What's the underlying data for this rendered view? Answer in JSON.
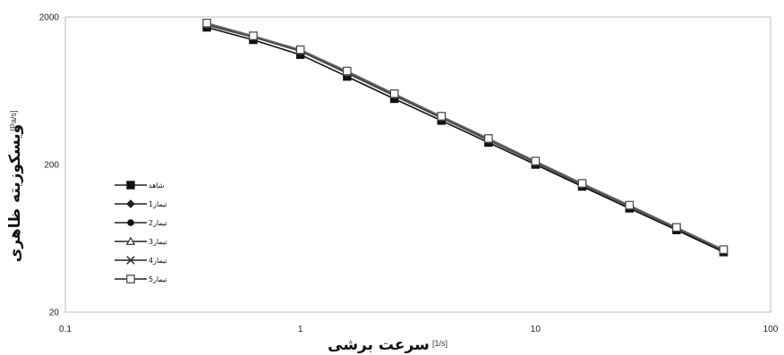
{
  "chart_data": {
    "type": "line",
    "x_scale": "log",
    "y_scale": "log",
    "xlim": [
      0.1,
      100
    ],
    "ylim": [
      20,
      2000
    ],
    "x_ticks": [
      "0.1",
      "1",
      "10",
      "100"
    ],
    "y_ticks": [
      "20",
      "200",
      "2000"
    ],
    "xlabel": "سرعت برشی",
    "xlabel_unit": "[1/s]",
    "ylabel": "ویسکوزیته ظاهری",
    "ylabel_unit": "[Pa/s]",
    "grid": false,
    "legend_position": "left-center",
    "x": [
      0.4,
      0.63,
      1.0,
      1.58,
      2.51,
      3.98,
      6.31,
      10.0,
      15.8,
      25.1,
      39.8,
      63.1
    ],
    "series": [
      {
        "name": "شاهد",
        "marker": "filled-square",
        "values": [
          1700,
          1400,
          1110,
          790,
          558,
          397,
          282,
          200,
          142,
          101,
          72,
          51
        ]
      },
      {
        "name": "تیمار1",
        "marker": "diamond",
        "values": [
          1760,
          1460,
          1170,
          830,
          585,
          413,
          292,
          206,
          146,
          104,
          74,
          52
        ]
      },
      {
        "name": "تیمار2",
        "marker": "circle",
        "values": [
          1780,
          1470,
          1180,
          840,
          590,
          416,
          294,
          207,
          147,
          104,
          74,
          52
        ]
      },
      {
        "name": "تیمار3",
        "marker": "triangle",
        "values": [
          1770,
          1465,
          1175,
          835,
          588,
          414,
          293,
          206,
          146,
          104,
          74,
          52
        ]
      },
      {
        "name": "تیمار4",
        "marker": "x",
        "values": [
          1790,
          1475,
          1185,
          845,
          593,
          418,
          295,
          208,
          147,
          105,
          74,
          52
        ]
      },
      {
        "name": "تیمار5",
        "marker": "open-square",
        "values": [
          1820,
          1490,
          1200,
          860,
          604,
          425,
          300,
          211,
          149,
          106,
          75,
          53
        ]
      }
    ]
  }
}
